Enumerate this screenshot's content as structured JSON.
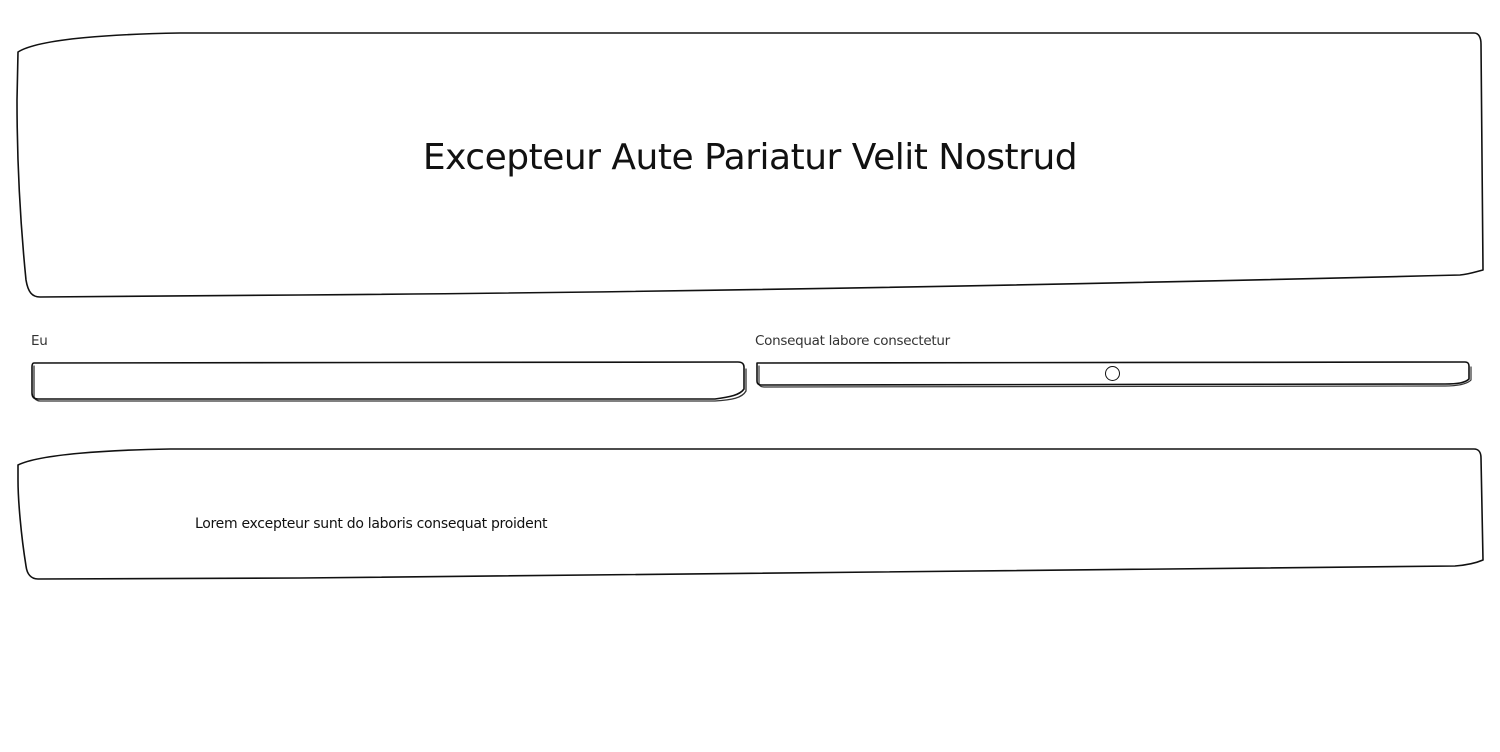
{
  "header": {
    "title": "Excepteur Aute Pariatur Velit Nostrud"
  },
  "form": {
    "text_field": {
      "label": "Eu",
      "value": "",
      "placeholder": ""
    },
    "slider": {
      "label": "Consequat labore consectetur",
      "value_fraction": 0.5
    }
  },
  "content": {
    "paragraph": "Lorem excepteur sunt do laboris consequat proident"
  },
  "colors": {
    "stroke": "#111111",
    "background": "#ffffff"
  }
}
